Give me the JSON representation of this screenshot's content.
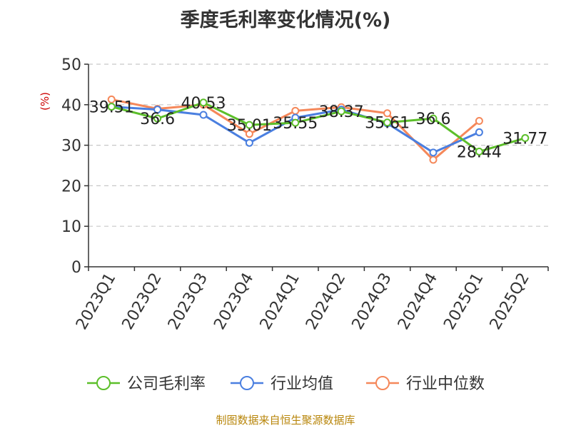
{
  "chart_data": {
    "type": "line",
    "title": "季度毛利率变化情况(%)",
    "ylabel": "(%)",
    "xlabel": "",
    "ylim": [
      0,
      50
    ],
    "yticks": [
      0,
      10,
      20,
      30,
      40,
      50
    ],
    "grid": true,
    "legend_position": "bottom",
    "categories": [
      "2023Q1",
      "2023Q2",
      "2023Q3",
      "2023Q4",
      "2024Q1",
      "2024Q2",
      "2024Q3",
      "2024Q4",
      "2025Q1",
      "2025Q2"
    ],
    "series": [
      {
        "name": "公司毛利率",
        "color": "#5cbf2a",
        "values": [
          39.51,
          36.6,
          40.53,
          35.01,
          35.55,
          38.37,
          35.61,
          36.6,
          28.44,
          31.77
        ],
        "labels": [
          "39.51",
          "36.6",
          "40.53",
          "35.01",
          "35.55",
          "38.37",
          "35.61",
          "36.6",
          "28.44",
          "31.77"
        ]
      },
      {
        "name": "行业均值",
        "color": "#4a7fe0",
        "values": [
          39.5,
          38.8,
          37.5,
          30.6,
          36.8,
          38.8,
          35.4,
          28.2,
          33.2,
          null
        ]
      },
      {
        "name": "行业中位数",
        "color": "#f5885a",
        "values": [
          41.3,
          39.0,
          40.0,
          32.8,
          38.5,
          39.4,
          37.9,
          26.4,
          36.0,
          null
        ]
      }
    ]
  },
  "source": "制图数据来自恒生聚源数据库"
}
